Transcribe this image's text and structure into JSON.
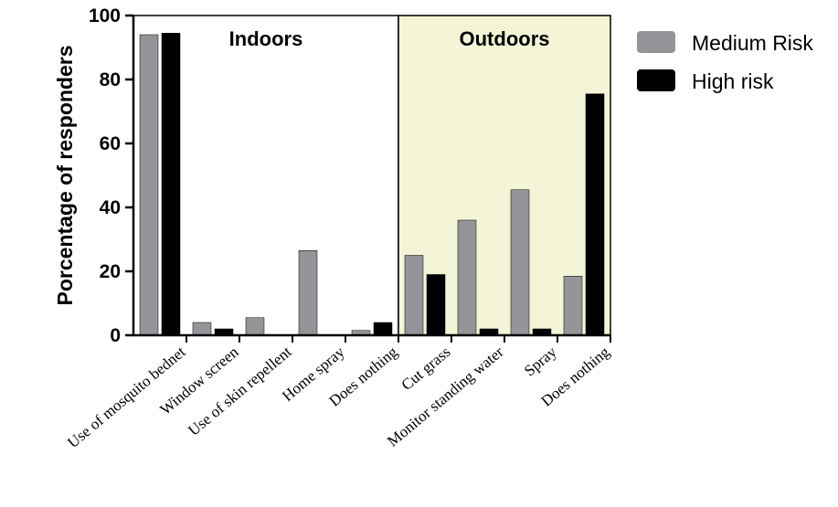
{
  "chart_data": {
    "type": "bar",
    "title": "",
    "xlabel": "",
    "ylabel": "Porcentage of responders",
    "ylim": [
      0,
      100
    ],
    "yticks": [
      "0",
      "20",
      "40",
      "60",
      "80",
      "100"
    ],
    "grid": false,
    "legend_position": "right",
    "regions": [
      {
        "label": "Indoors",
        "color": "#ffffff",
        "categories": [
          "Use of mosquito bednet",
          "Window screen",
          "Use of skin repellent",
          "Home spray",
          "Does nothing"
        ]
      },
      {
        "label": "Outdoors",
        "color": "#f3f5d6",
        "categories": [
          "Cut grass",
          "Monitor standing water",
          "Spray",
          "Does nothing"
        ]
      }
    ],
    "categories": [
      "Use of mosquito bednet",
      "Window screen",
      "Use of skin repellent",
      "Home spray",
      "Does nothing",
      "Cut grass",
      "Monitor standing water",
      "Spray",
      "Does nothing"
    ],
    "series": [
      {
        "name": "Medium Risk",
        "color": "#939598",
        "values": [
          94,
          4,
          5.5,
          26.5,
          1.5,
          25,
          36,
          45.5,
          18.5
        ]
      },
      {
        "name": "High risk",
        "color": "#000000",
        "values": [
          94.5,
          2,
          0,
          0,
          4,
          19,
          2,
          2,
          75.5
        ]
      }
    ]
  }
}
